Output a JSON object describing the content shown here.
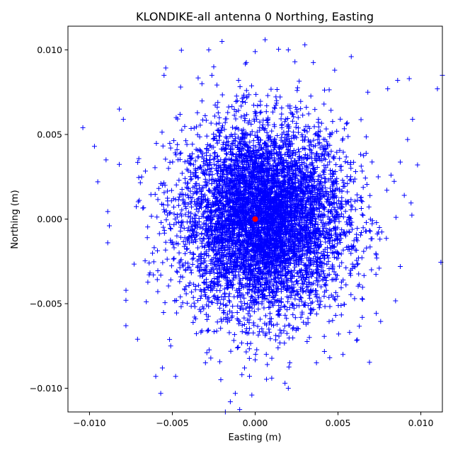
{
  "chart_data": {
    "type": "scatter",
    "title": "KLONDIKE-all antenna 0 Northing, Easting",
    "xlabel": "Easting (m)",
    "ylabel": "Northing (m)",
    "xlim": [
      -0.0113,
      0.0113
    ],
    "ylim": [
      -0.0114,
      0.0114
    ],
    "xticks": [
      -0.01,
      -0.005,
      0.0,
      0.005,
      0.01
    ],
    "yticks": [
      -0.01,
      -0.005,
      0.0,
      0.005,
      0.01
    ],
    "xtick_labels": [
      "−0.010",
      "−0.005",
      "0.000",
      "0.005",
      "0.010"
    ],
    "ytick_labels": [
      "−0.010",
      "−0.005",
      "0.000",
      "0.005",
      "0.010"
    ],
    "grid": false,
    "legend": "none",
    "series": [
      {
        "marker": "plus",
        "color": "#0000ff",
        "distribution": "dense elliptical cloud of several thousand points centred near (0.0005, 0.0), std about 0.0025 m easting and 0.0028 m northing",
        "outliers": [
          [
            -0.0104,
            0.0054
          ],
          [
            -0.0097,
            0.0043
          ],
          [
            -0.0095,
            0.0022
          ],
          [
            -0.009,
            0.0035
          ],
          [
            -0.0088,
            -0.0004
          ],
          [
            -0.0089,
            -0.0014
          ],
          [
            -0.0082,
            0.0065
          ],
          [
            -0.0078,
            -0.0048
          ],
          [
            -0.0078,
            -0.0063
          ],
          [
            -0.0071,
            -0.0071
          ],
          [
            -0.006,
            -0.0093
          ],
          [
            -0.0057,
            -0.0103
          ],
          [
            -0.0056,
            -0.0088
          ],
          [
            -0.0048,
            -0.0093
          ],
          [
            -0.0055,
            0.0085
          ],
          [
            -0.0045,
            0.0078
          ],
          [
            -0.0028,
            0.01
          ],
          [
            -0.002,
            0.0105
          ],
          [
            -0.0025,
            0.009
          ],
          [
            -0.001,
            0.0082
          ],
          [
            0.0,
            0.0099
          ],
          [
            0.0006,
            0.0106
          ],
          [
            0.002,
            0.01
          ],
          [
            0.0024,
            0.0093
          ],
          [
            0.003,
            0.0103
          ],
          [
            0.0048,
            0.0088
          ],
          [
            0.0058,
            0.0096
          ],
          [
            0.0068,
            0.0075
          ],
          [
            0.008,
            0.0077
          ],
          [
            0.0086,
            0.0082
          ],
          [
            0.0093,
            0.0083
          ],
          [
            0.011,
            0.0077
          ],
          [
            0.0113,
            0.0085
          ],
          [
            0.0095,
            0.0059
          ],
          [
            0.0092,
            0.0047
          ],
          [
            0.0098,
            0.0032
          ],
          [
            0.0082,
            0.0026
          ],
          [
            0.009,
            0.0014
          ],
          [
            0.0085,
            0.0001
          ],
          [
            0.0075,
            -0.0005
          ],
          [
            0.006,
            -0.0047
          ],
          [
            0.0057,
            -0.0067
          ],
          [
            0.0053,
            -0.008
          ],
          [
            0.0045,
            -0.0082
          ],
          [
            0.0037,
            -0.0085
          ],
          [
            0.0018,
            -0.0097
          ],
          [
            0.002,
            -0.01
          ],
          [
            0.001,
            -0.0094
          ],
          [
            -0.0012,
            -0.0103
          ],
          [
            -0.0002,
            -0.0104
          ],
          [
            -0.0015,
            -0.0108
          ],
          [
            -0.0018,
            -0.0114
          ],
          [
            -0.003,
            -0.0085
          ],
          [
            -0.0008,
            -0.0092
          ]
        ]
      },
      {
        "marker": "circle",
        "color": "#ff0000",
        "points": [
          [
            0.0,
            0.0
          ]
        ]
      }
    ]
  }
}
